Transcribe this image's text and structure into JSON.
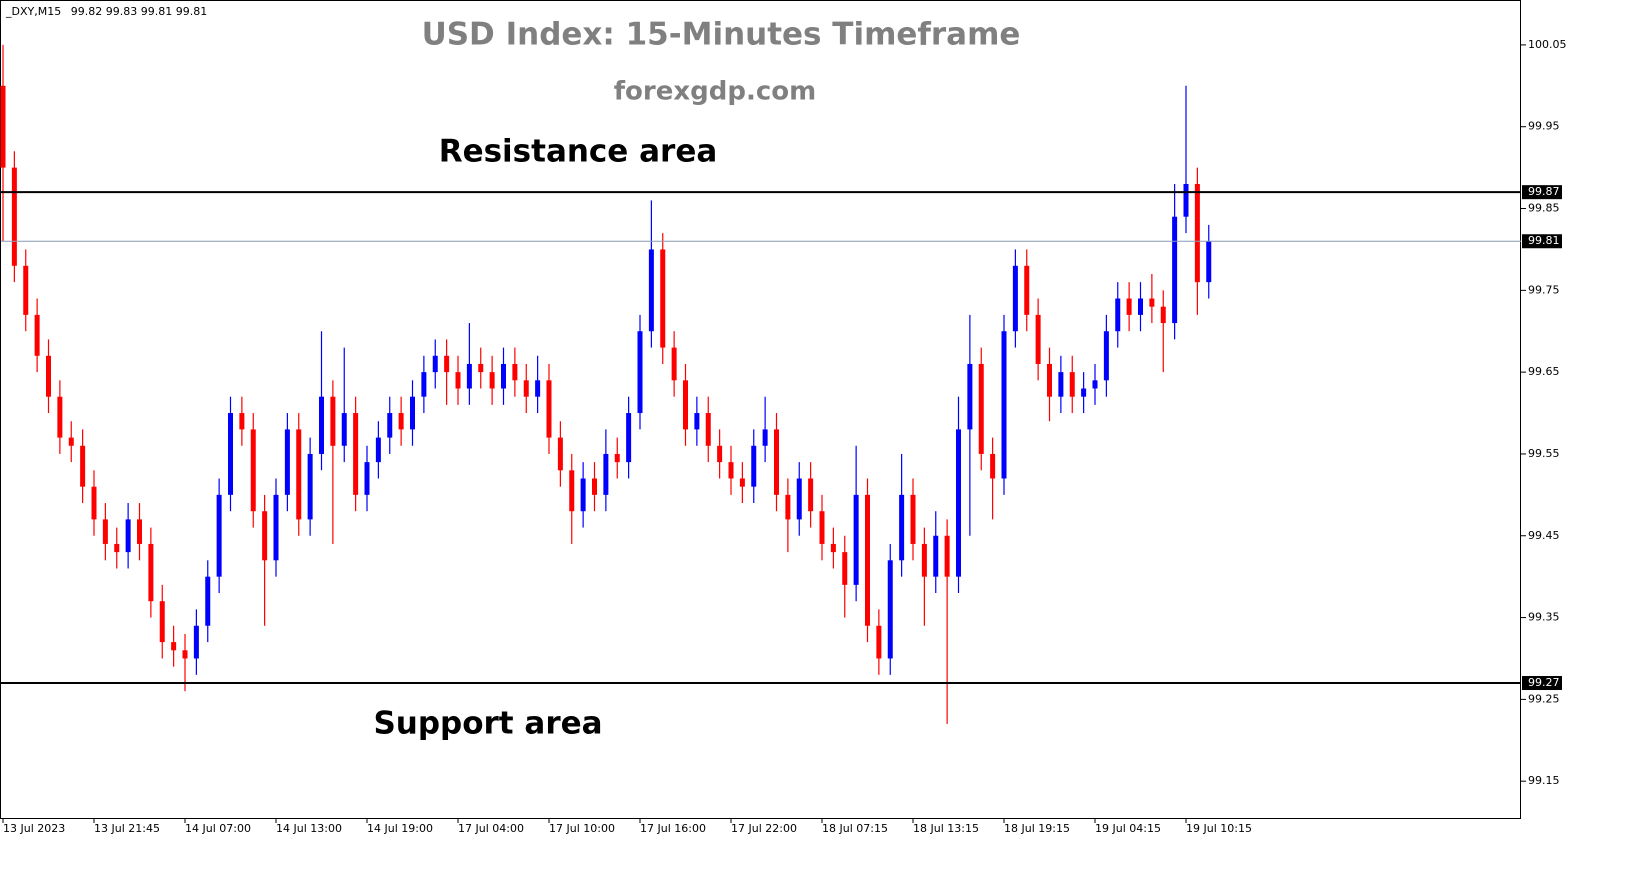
{
  "chart_data": {
    "type": "candlestick",
    "title": "USD Index: 15-Minutes Timeframe",
    "subtitle": "forexgdp.com",
    "symbol": "_DXY,M15",
    "info_values": [
      99.82,
      99.83,
      99.81,
      99.81
    ],
    "annotations": [
      {
        "text": "Resistance area",
        "value": 99.94
      },
      {
        "text": "Support area",
        "value": 99.2
      }
    ],
    "up_color": "#0000ff",
    "down_color": "#ff0000",
    "ylim": [
      99.105,
      100.1
    ],
    "yticks": [
      100.05,
      99.95,
      99.85,
      99.75,
      99.65,
      99.55,
      99.45,
      99.35,
      99.25,
      99.15
    ],
    "hlines": [
      {
        "value": 99.87,
        "color": "#000000",
        "width": 2
      },
      {
        "value": 99.81,
        "color": "#8a9bb5",
        "width": 1
      },
      {
        "value": 99.27,
        "color": "#000000",
        "width": 2
      }
    ],
    "categories": [
      "13 Jul 2023",
      null,
      null,
      null,
      null,
      null,
      null,
      null,
      "13 Jul 21:45",
      null,
      null,
      null,
      null,
      null,
      null,
      null,
      "14 Jul 07:00",
      null,
      null,
      null,
      null,
      null,
      null,
      null,
      "14 Jul 13:00",
      null,
      null,
      null,
      null,
      null,
      null,
      null,
      "14 Jul 19:00",
      null,
      null,
      null,
      null,
      null,
      null,
      null,
      "17 Jul 04:00",
      null,
      null,
      null,
      null,
      null,
      null,
      null,
      "17 Jul 10:00",
      null,
      null,
      null,
      null,
      null,
      null,
      null,
      "17 Jul 16:00",
      null,
      null,
      null,
      null,
      null,
      null,
      null,
      "17 Jul 22:00",
      null,
      null,
      null,
      null,
      null,
      null,
      null,
      "18 Jul 07:15",
      null,
      null,
      null,
      null,
      null,
      null,
      null,
      "18 Jul 13:15",
      null,
      null,
      null,
      null,
      null,
      null,
      null,
      "18 Jul 19:15",
      null,
      null,
      null,
      null,
      null,
      null,
      null,
      "19 Jul 04:15",
      null,
      null,
      null,
      null,
      null,
      null,
      null,
      "19 Jul 10:15",
      null,
      null
    ],
    "open": [
      100.0,
      99.9,
      99.78,
      99.72,
      99.67,
      99.62,
      99.57,
      99.56,
      99.51,
      99.47,
      99.44,
      99.43,
      99.47,
      99.44,
      99.37,
      99.32,
      99.31,
      99.3,
      99.34,
      99.4,
      99.5,
      99.6,
      99.58,
      99.48,
      99.42,
      99.5,
      99.58,
      99.47,
      99.55,
      99.62,
      99.56,
      99.6,
      99.5,
      99.54,
      99.57,
      99.6,
      99.58,
      99.62,
      99.65,
      99.67,
      99.65,
      99.63,
      99.66,
      99.65,
      99.63,
      99.66,
      99.64,
      99.62,
      99.64,
      99.57,
      99.53,
      99.48,
      99.52,
      99.5,
      99.55,
      99.54,
      99.6,
      99.7,
      99.8,
      99.68,
      99.64,
      99.58,
      99.6,
      99.56,
      99.54,
      99.52,
      99.51,
      99.56,
      99.58,
      99.5,
      99.47,
      99.52,
      99.48,
      99.44,
      99.43,
      99.39,
      99.5,
      99.34,
      99.3,
      99.42,
      99.5,
      99.44,
      99.4,
      99.45,
      99.4,
      99.58,
      99.66,
      99.55,
      99.52,
      99.7,
      99.78,
      99.72,
      99.66,
      99.62,
      99.65,
      99.62,
      99.63,
      99.64,
      99.7,
      99.74,
      99.72,
      99.74,
      99.73,
      99.71,
      99.84,
      99.88,
      99.76
    ],
    "high": [
      100.05,
      99.92,
      99.8,
      99.74,
      99.69,
      99.64,
      99.59,
      99.58,
      99.53,
      99.49,
      99.46,
      99.49,
      99.49,
      99.46,
      99.39,
      99.34,
      99.33,
      99.36,
      99.42,
      99.52,
      99.62,
      99.62,
      99.6,
      99.5,
      99.52,
      99.6,
      99.6,
      99.57,
      99.7,
      99.64,
      99.68,
      99.62,
      99.56,
      99.59,
      99.62,
      99.62,
      99.64,
      99.67,
      99.69,
      99.69,
      99.67,
      99.71,
      99.68,
      99.67,
      99.68,
      99.68,
      99.66,
      99.67,
      99.66,
      99.59,
      99.55,
      99.54,
      99.54,
      99.58,
      99.57,
      99.62,
      99.72,
      99.86,
      99.82,
      99.7,
      99.66,
      99.62,
      99.62,
      99.58,
      99.56,
      99.54,
      99.58,
      99.62,
      99.6,
      99.52,
      99.54,
      99.54,
      99.5,
      99.46,
      99.45,
      99.56,
      99.52,
      99.36,
      99.44,
      99.55,
      99.52,
      99.46,
      99.48,
      99.47,
      99.62,
      99.72,
      99.68,
      99.57,
      99.72,
      99.8,
      99.8,
      99.74,
      99.68,
      99.67,
      99.67,
      99.65,
      99.66,
      99.72,
      99.76,
      99.76,
      99.76,
      99.77,
      99.75,
      99.88,
      100.0,
      99.9,
      99.83
    ],
    "low": [
      99.81,
      99.76,
      99.7,
      99.65,
      99.6,
      99.55,
      99.54,
      99.49,
      99.45,
      99.42,
      99.41,
      99.41,
      99.42,
      99.35,
      99.3,
      99.29,
      99.26,
      99.28,
      99.32,
      99.38,
      99.48,
      99.56,
      99.46,
      99.34,
      99.4,
      99.48,
      99.45,
      99.45,
      99.53,
      99.44,
      99.54,
      99.48,
      99.48,
      99.52,
      99.55,
      99.56,
      99.56,
      99.6,
      99.63,
      99.61,
      99.61,
      99.61,
      99.63,
      99.61,
      99.61,
      99.62,
      99.6,
      99.6,
      99.55,
      99.51,
      99.44,
      99.46,
      99.48,
      99.48,
      99.52,
      99.52,
      99.58,
      99.68,
      99.66,
      99.62,
      99.56,
      99.56,
      99.54,
      99.52,
      99.5,
      99.49,
      99.49,
      99.54,
      99.48,
      99.43,
      99.45,
      99.46,
      99.42,
      99.41,
      99.35,
      99.37,
      99.32,
      99.28,
      99.28,
      99.4,
      99.42,
      99.34,
      99.38,
      99.22,
      99.38,
      99.45,
      99.53,
      99.47,
      99.5,
      99.68,
      99.7,
      99.64,
      99.59,
      99.6,
      99.6,
      99.6,
      99.61,
      99.62,
      99.68,
      99.7,
      99.7,
      99.71,
      99.65,
      99.69,
      99.82,
      99.72,
      99.74
    ],
    "close": [
      99.9,
      99.78,
      99.72,
      99.67,
      99.62,
      99.57,
      99.56,
      99.51,
      99.47,
      99.44,
      99.43,
      99.47,
      99.44,
      99.37,
      99.32,
      99.31,
      99.3,
      99.34,
      99.4,
      99.5,
      99.6,
      99.58,
      99.48,
      99.42,
      99.5,
      99.58,
      99.47,
      99.55,
      99.62,
      99.56,
      99.6,
      99.5,
      99.54,
      99.57,
      99.6,
      99.58,
      99.62,
      99.65,
      99.67,
      99.65,
      99.63,
      99.66,
      99.65,
      99.63,
      99.66,
      99.64,
      99.62,
      99.64,
      99.57,
      99.53,
      99.48,
      99.52,
      99.5,
      99.55,
      99.54,
      99.6,
      99.7,
      99.8,
      99.68,
      99.64,
      99.58,
      99.6,
      99.56,
      99.54,
      99.52,
      99.51,
      99.56,
      99.58,
      99.5,
      99.47,
      99.52,
      99.48,
      99.44,
      99.43,
      99.39,
      99.5,
      99.34,
      99.3,
      99.42,
      99.5,
      99.44,
      99.4,
      99.45,
      99.4,
      99.58,
      99.66,
      99.55,
      99.52,
      99.7,
      99.78,
      99.72,
      99.66,
      99.62,
      99.65,
      99.62,
      99.63,
      99.64,
      99.7,
      99.74,
      99.72,
      99.74,
      99.73,
      99.71,
      99.84,
      99.88,
      99.76,
      99.81
    ]
  }
}
